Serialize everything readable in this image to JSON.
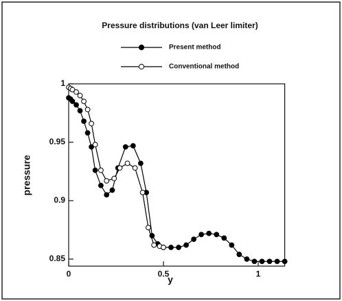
{
  "chart_data": {
    "type": "line",
    "title": "Pressure distributions (van Leer limiter)",
    "x_label": "y",
    "y_label": "pressure",
    "xlim": [
      0,
      1.14
    ],
    "ylim": [
      0.844,
      1.0
    ],
    "xticks": [
      0,
      0.5,
      1
    ],
    "yticks": [
      0.85,
      0.9,
      0.95,
      1
    ],
    "series": [
      {
        "name": "Present method",
        "color": "#000000",
        "marker": "filled",
        "x": [
          0,
          0.01,
          0.02,
          0.04,
          0.06,
          0.08,
          0.1,
          0.12,
          0.14,
          0.17,
          0.2,
          0.23,
          0.26,
          0.3,
          0.34,
          0.38,
          0.41,
          0.44,
          0.47,
          0.5,
          0.54,
          0.58,
          0.62,
          0.66,
          0.7,
          0.74,
          0.78,
          0.82,
          0.86,
          0.9,
          0.94,
          0.98,
          1.02,
          1.06,
          1.1,
          1.14
        ],
        "values": [
          0.988,
          0.987,
          0.985,
          0.982,
          0.977,
          0.968,
          0.958,
          0.946,
          0.926,
          0.913,
          0.905,
          0.909,
          0.928,
          0.946,
          0.947,
          0.932,
          0.907,
          0.87,
          0.863,
          0.86,
          0.86,
          0.86,
          0.862,
          0.867,
          0.871,
          0.872,
          0.871,
          0.868,
          0.862,
          0.854,
          0.85,
          0.848,
          0.848,
          0.848,
          0.848,
          0.848
        ]
      },
      {
        "name": "Conventional method",
        "color": "#000000",
        "marker": "open",
        "x": [
          0,
          0.01,
          0.02,
          0.04,
          0.06,
          0.08,
          0.1,
          0.12,
          0.14,
          0.17,
          0.2,
          0.24,
          0.27,
          0.31,
          0.35,
          0.39,
          0.42,
          0.45,
          0.48,
          0.5
        ],
        "values": [
          0.997,
          0.996,
          0.995,
          0.993,
          0.99,
          0.985,
          0.978,
          0.966,
          0.948,
          0.926,
          0.917,
          0.919,
          0.928,
          0.932,
          0.928,
          0.907,
          0.877,
          0.862,
          0.861,
          0.86
        ]
      }
    ]
  }
}
